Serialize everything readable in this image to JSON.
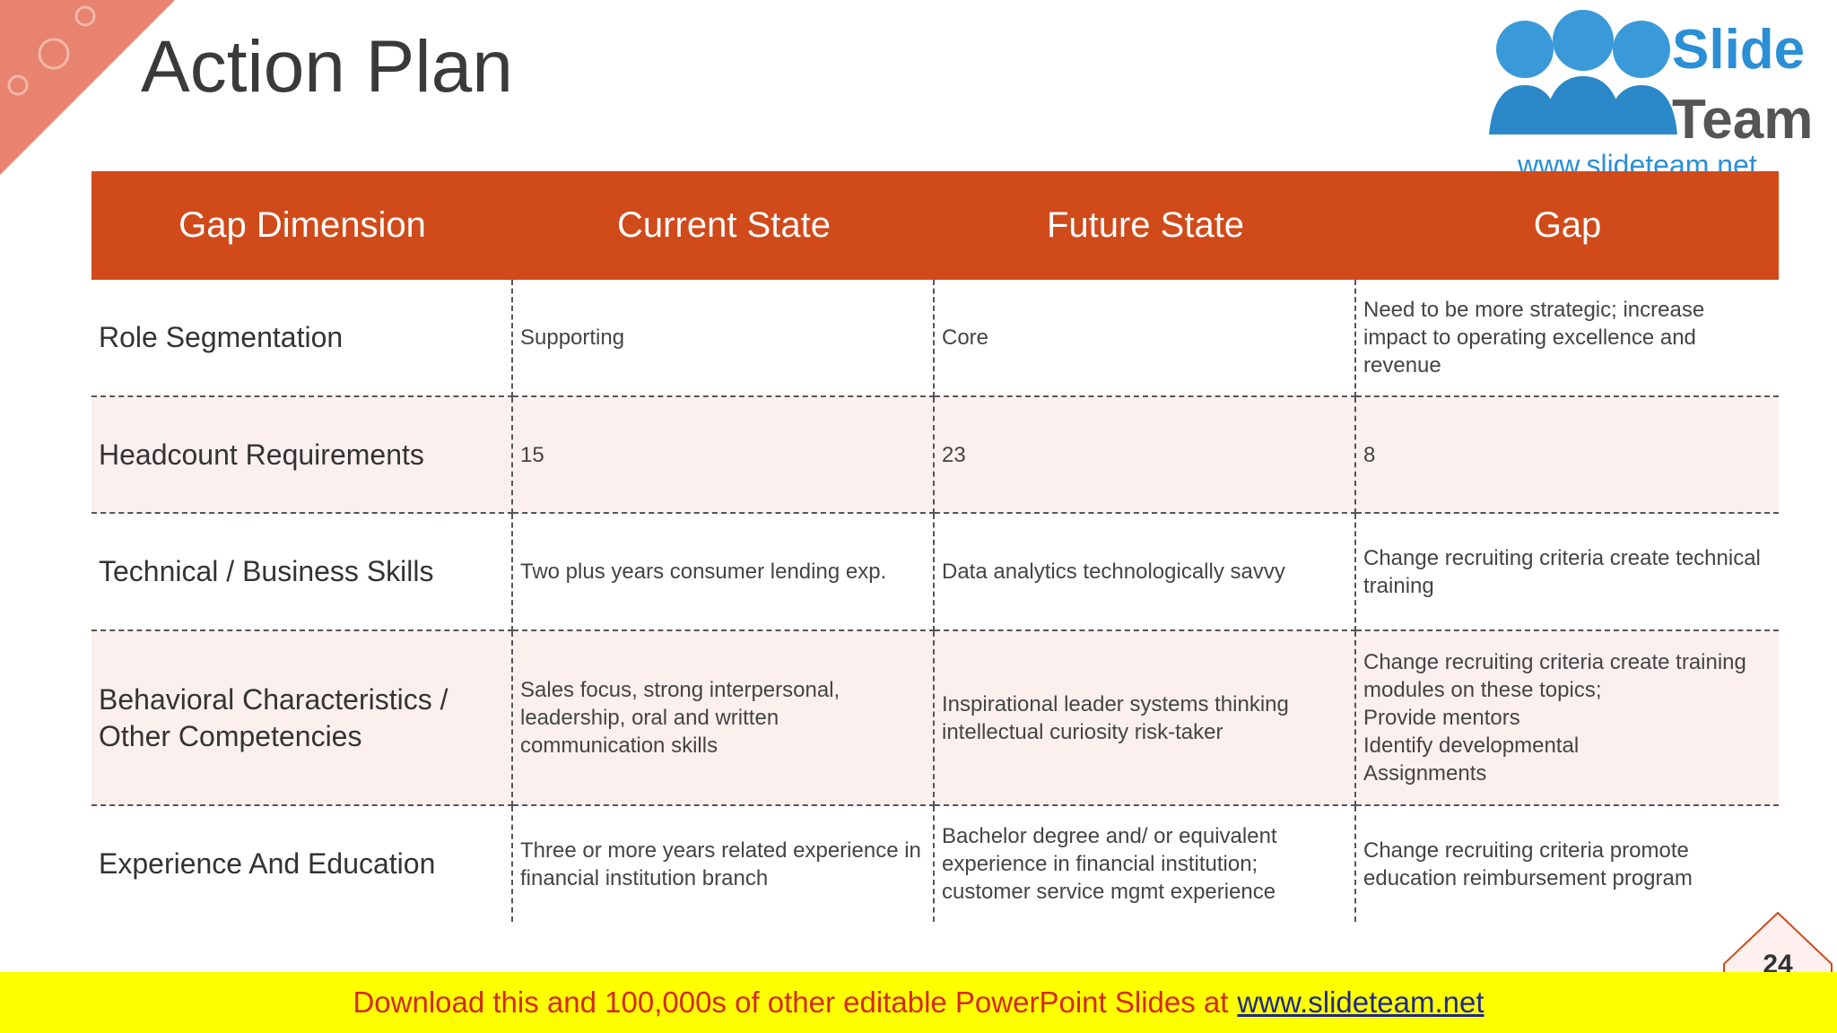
{
  "slide": {
    "title": "Action Plan",
    "page_number": "24"
  },
  "logo": {
    "word1": "Slide",
    "word2": "Team",
    "url": "www.slideteam.net"
  },
  "table": {
    "headers": [
      "Gap Dimension",
      "Current State",
      "Future State",
      "Gap"
    ],
    "rows": [
      [
        [
          "Role Segmentation"
        ],
        [
          "Supporting"
        ],
        [
          "Core"
        ],
        [
          "Need to be more strategic; increase impact to operating excellence and revenue"
        ]
      ],
      [
        [
          "Headcount Requirements"
        ],
        [
          15
        ],
        [
          23
        ],
        [
          8
        ]
      ],
      [
        [
          "Technical / Business Skills"
        ],
        [
          "Two plus years consumer lending exp."
        ],
        [
          "Data analytics technologically savvy"
        ],
        [
          "Change recruiting criteria create technical training"
        ]
      ],
      [
        [
          "Behavioral Characteristics / Other Competencies"
        ],
        [
          "Sales focus, strong interpersonal, leadership, oral and written communication skills"
        ],
        [
          "Inspirational leader systems thinking intellectual curiosity risk-taker"
        ],
        [
          "Change recruiting criteria create training modules on these topics;",
          "Provide mentors",
          "Identify developmental",
          "Assignments"
        ]
      ],
      [
        [
          "Experience And Education"
        ],
        [
          "Three or more years related experience in financial institution branch"
        ],
        [
          "Bachelor degree and/ or equivalent experience in financial institution; customer service mgmt experience"
        ],
        [
          "Change recruiting criteria promote education reimbursement program"
        ]
      ]
    ]
  },
  "banner": {
    "text": "Download this and 100,000s of other editable PowerPoint Slides at",
    "link": "www.slideteam.net"
  }
}
